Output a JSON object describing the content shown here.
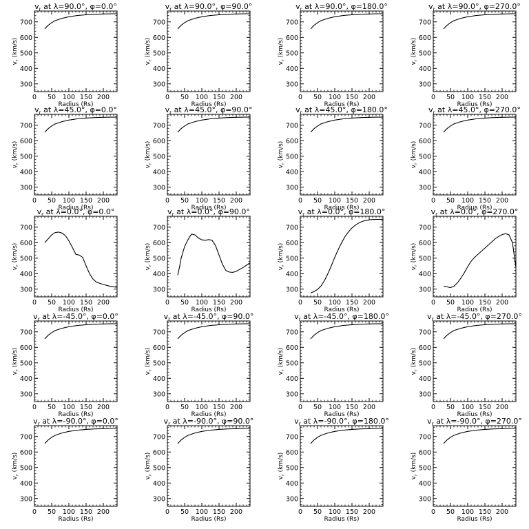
{
  "chart_data": [
    {
      "type": "line",
      "title": "v_r at λ=90.0°, φ=0.0°",
      "title_parts": {
        "var": "v",
        "sub": "r",
        "mid": " at λ=90.0°, φ=0.0°"
      },
      "xlabel": "Radius (Rs)",
      "ylabel": "v_r (km/s)",
      "xlim": [
        0,
        240
      ],
      "ylim": [
        250,
        770
      ],
      "xticks": [
        0,
        50,
        100,
        150,
        200
      ],
      "yticks": [
        300,
        400,
        500,
        600,
        700
      ],
      "x": [
        30,
        40,
        50,
        60,
        80,
        100,
        125,
        150,
        175,
        200,
        225,
        240
      ],
      "y": [
        655,
        678,
        695,
        708,
        723,
        733,
        741,
        746,
        749,
        751,
        752,
        752
      ]
    },
    {
      "type": "line",
      "title": "v_r at λ=90.0°, φ=90.0°",
      "title_parts": {
        "var": "v",
        "sub": "r",
        "mid": " at λ=90.0°, φ=90.0°"
      },
      "xlabel": "Radius (Rs)",
      "ylabel": "v_r (km/s)",
      "xlim": [
        0,
        240
      ],
      "ylim": [
        250,
        770
      ],
      "xticks": [
        0,
        50,
        100,
        150,
        200
      ],
      "yticks": [
        300,
        400,
        500,
        600,
        700
      ],
      "x": [
        30,
        40,
        50,
        60,
        80,
        100,
        125,
        150,
        175,
        200,
        225,
        240
      ],
      "y": [
        655,
        678,
        695,
        708,
        723,
        733,
        741,
        746,
        749,
        751,
        752,
        752
      ]
    },
    {
      "type": "line",
      "title": "v_r at λ=90.0°, φ=180.0°",
      "title_parts": {
        "var": "v",
        "sub": "r",
        "mid": " at λ=90.0°, φ=180.0°"
      },
      "xlabel": "Radius (Rs)",
      "ylabel": "v_r (km/s)",
      "xlim": [
        0,
        240
      ],
      "ylim": [
        250,
        770
      ],
      "xticks": [
        0,
        50,
        100,
        150,
        200
      ],
      "yticks": [
        300,
        400,
        500,
        600,
        700
      ],
      "x": [
        30,
        40,
        50,
        60,
        80,
        100,
        125,
        150,
        175,
        200,
        225,
        240
      ],
      "y": [
        655,
        678,
        695,
        708,
        723,
        733,
        741,
        746,
        749,
        751,
        752,
        752
      ]
    },
    {
      "type": "line",
      "title": "v_r at λ=90.0°, φ=270.0°",
      "title_parts": {
        "var": "v",
        "sub": "r",
        "mid": " at λ=90.0°, φ=270.0°"
      },
      "xlabel": "Radius (Rs)",
      "ylabel": "v_r (km/s)",
      "xlim": [
        0,
        240
      ],
      "ylim": [
        250,
        770
      ],
      "xticks": [
        0,
        50,
        100,
        150,
        200
      ],
      "yticks": [
        300,
        400,
        500,
        600,
        700
      ],
      "x": [
        30,
        40,
        50,
        60,
        80,
        100,
        125,
        150,
        175,
        200,
        225,
        240
      ],
      "y": [
        655,
        678,
        695,
        708,
        723,
        733,
        741,
        746,
        749,
        751,
        752,
        752
      ]
    },
    {
      "type": "line",
      "title": "v_r at λ=45.0°, φ=0.0°",
      "title_parts": {
        "var": "v",
        "sub": "r",
        "mid": " at λ=45.0°, φ=0.0°"
      },
      "xlabel": "Radius (Rs)",
      "ylabel": "v_r (km/s)",
      "xlim": [
        0,
        240
      ],
      "ylim": [
        250,
        770
      ],
      "xticks": [
        0,
        50,
        100,
        150,
        200
      ],
      "yticks": [
        300,
        400,
        500,
        600,
        700
      ],
      "x": [
        30,
        40,
        50,
        60,
        80,
        100,
        125,
        150,
        175,
        200,
        225,
        240
      ],
      "y": [
        655,
        678,
        695,
        708,
        723,
        733,
        741,
        746,
        749,
        751,
        752,
        752
      ]
    },
    {
      "type": "line",
      "title": "v_r at λ=45.0°, φ=90.0°",
      "title_parts": {
        "var": "v",
        "sub": "r",
        "mid": " at λ=45.0°, φ=90.0°"
      },
      "xlabel": "Radius (Rs)",
      "ylabel": "v_r (km/s)",
      "xlim": [
        0,
        240
      ],
      "ylim": [
        250,
        770
      ],
      "xticks": [
        0,
        50,
        100,
        150,
        200
      ],
      "yticks": [
        300,
        400,
        500,
        600,
        700
      ],
      "x": [
        30,
        40,
        50,
        60,
        80,
        100,
        125,
        150,
        175,
        200,
        225,
        240
      ],
      "y": [
        655,
        678,
        695,
        708,
        723,
        733,
        741,
        746,
        749,
        751,
        752,
        752
      ]
    },
    {
      "type": "line",
      "title": "v_r at λ=45.0°, φ=180.0°",
      "title_parts": {
        "var": "v",
        "sub": "r",
        "mid": " at λ=45.0°, φ=180.0°"
      },
      "xlabel": "Radius (Rs)",
      "ylabel": "v_r (km/s)",
      "xlim": [
        0,
        240
      ],
      "ylim": [
        250,
        770
      ],
      "xticks": [
        0,
        50,
        100,
        150,
        200
      ],
      "yticks": [
        300,
        400,
        500,
        600,
        700
      ],
      "x": [
        30,
        40,
        50,
        60,
        80,
        100,
        125,
        150,
        175,
        200,
        225,
        240
      ],
      "y": [
        655,
        678,
        695,
        708,
        723,
        733,
        741,
        746,
        749,
        751,
        752,
        752
      ]
    },
    {
      "type": "line",
      "title": "v_r at λ=45.0°, φ=270.0°",
      "title_parts": {
        "var": "v",
        "sub": "r",
        "mid": " at λ=45.0°, φ=270.0°"
      },
      "xlabel": "Radius (Rs)",
      "ylabel": "v_r (km/s)",
      "xlim": [
        0,
        240
      ],
      "ylim": [
        250,
        770
      ],
      "xticks": [
        0,
        50,
        100,
        150,
        200
      ],
      "yticks": [
        300,
        400,
        500,
        600,
        700
      ],
      "x": [
        30,
        40,
        50,
        60,
        80,
        100,
        125,
        150,
        175,
        200,
        225,
        240
      ],
      "y": [
        655,
        678,
        695,
        708,
        723,
        733,
        741,
        746,
        749,
        751,
        752,
        752
      ]
    },
    {
      "type": "line",
      "title": "v_r at λ=0.0°, φ=0.0°",
      "title_parts": {
        "var": "v",
        "sub": "r",
        "mid": " at λ=0.0°, φ=0.0°"
      },
      "xlabel": "Radius (Rs)",
      "ylabel": "v_r (km/s)",
      "xlim": [
        0,
        240
      ],
      "ylim": [
        250,
        770
      ],
      "xticks": [
        0,
        50,
        100,
        150,
        200
      ],
      "yticks": [
        300,
        400,
        500,
        600,
        700
      ],
      "x": [
        30,
        40,
        50,
        60,
        70,
        80,
        90,
        100,
        110,
        120,
        130,
        140,
        150,
        160,
        170,
        180,
        200,
        220,
        240
      ],
      "y": [
        600,
        625,
        650,
        665,
        668,
        662,
        645,
        612,
        570,
        525,
        520,
        505,
        450,
        400,
        365,
        345,
        330,
        318,
        312
      ]
    },
    {
      "type": "line",
      "title": "v_r at λ=0.0°, φ=90.0°",
      "title_parts": {
        "var": "v",
        "sub": "r",
        "mid": " at λ=0.0°, φ=90.0°"
      },
      "xlabel": "Radius (Rs)",
      "ylabel": "v_r (km/s)",
      "xlim": [
        0,
        240
      ],
      "ylim": [
        250,
        770
      ],
      "xticks": [
        0,
        50,
        100,
        150,
        200
      ],
      "yticks": [
        300,
        400,
        500,
        600,
        700
      ],
      "x": [
        30,
        35,
        40,
        50,
        60,
        70,
        80,
        90,
        100,
        110,
        120,
        130,
        140,
        150,
        160,
        170,
        180,
        190,
        200,
        220,
        240
      ],
      "y": [
        390,
        440,
        500,
        575,
        620,
        655,
        650,
        630,
        618,
        615,
        620,
        615,
        580,
        520,
        460,
        420,
        410,
        408,
        415,
        440,
        470
      ]
    },
    {
      "type": "line",
      "title": "v_r at λ=0.0°, φ=180.0°",
      "title_parts": {
        "var": "v",
        "sub": "r",
        "mid": " at λ=0.0°, φ=180.0°"
      },
      "xlabel": "Radius (Rs)",
      "ylabel": "v_r (km/s)",
      "xlim": [
        0,
        240
      ],
      "ylim": [
        250,
        770
      ],
      "xticks": [
        0,
        50,
        100,
        150,
        200
      ],
      "yticks": [
        300,
        400,
        500,
        600,
        700
      ],
      "x": [
        30,
        40,
        50,
        60,
        70,
        80,
        90,
        100,
        110,
        120,
        130,
        140,
        150,
        160,
        170,
        180,
        190,
        200,
        210,
        220,
        240
      ],
      "y": [
        275,
        285,
        298,
        320,
        355,
        400,
        450,
        505,
        555,
        600,
        640,
        670,
        695,
        713,
        727,
        737,
        743,
        747,
        749,
        750,
        750
      ]
    },
    {
      "type": "line",
      "title": "v_r at λ=0.0°, φ=270.0°",
      "title_parts": {
        "var": "v",
        "sub": "r",
        "mid": " at λ=0.0°, φ=270.0°"
      },
      "xlabel": "Radius (Rs)",
      "ylabel": "v_r (km/s)",
      "xlim": [
        0,
        240
      ],
      "ylim": [
        250,
        770
      ],
      "xticks": [
        0,
        50,
        100,
        150,
        200
      ],
      "yticks": [
        300,
        400,
        500,
        600,
        700
      ],
      "x": [
        30,
        40,
        50,
        60,
        70,
        80,
        90,
        100,
        110,
        120,
        130,
        140,
        150,
        160,
        170,
        180,
        190,
        200,
        210,
        220,
        230,
        240
      ],
      "y": [
        320,
        315,
        310,
        318,
        340,
        370,
        405,
        445,
        480,
        505,
        525,
        545,
        565,
        585,
        605,
        625,
        640,
        652,
        658,
        650,
        600,
        440
      ]
    },
    {
      "type": "line",
      "title": "v_r at λ=-45.0°, φ=0.0°",
      "title_parts": {
        "var": "v",
        "sub": "r",
        "mid": " at λ=-45.0°, φ=0.0°"
      },
      "xlabel": "Radius (Rs)",
      "ylabel": "v_r (km/s)",
      "xlim": [
        0,
        240
      ],
      "ylim": [
        250,
        770
      ],
      "xticks": [
        0,
        50,
        100,
        150,
        200
      ],
      "yticks": [
        300,
        400,
        500,
        600,
        700
      ],
      "x": [
        30,
        40,
        50,
        60,
        80,
        100,
        125,
        150,
        175,
        200,
        225,
        240
      ],
      "y": [
        655,
        678,
        695,
        708,
        723,
        733,
        741,
        746,
        749,
        751,
        752,
        752
      ]
    },
    {
      "type": "line",
      "title": "v_r at λ=-45.0°, φ=90.0°",
      "title_parts": {
        "var": "v",
        "sub": "r",
        "mid": " at λ=-45.0°, φ=90.0°"
      },
      "xlabel": "Radius (Rs)",
      "ylabel": "v_r (km/s)",
      "xlim": [
        0,
        240
      ],
      "ylim": [
        250,
        770
      ],
      "xticks": [
        0,
        50,
        100,
        150,
        200
      ],
      "yticks": [
        300,
        400,
        500,
        600,
        700
      ],
      "x": [
        30,
        40,
        50,
        60,
        80,
        100,
        125,
        150,
        175,
        200,
        225,
        240
      ],
      "y": [
        655,
        678,
        695,
        708,
        723,
        733,
        741,
        746,
        749,
        751,
        752,
        752
      ]
    },
    {
      "type": "line",
      "title": "v_r at λ=-45.0°, φ=180.0°",
      "title_parts": {
        "var": "v",
        "sub": "r",
        "mid": " at λ=-45.0°, φ=180.0°"
      },
      "xlabel": "Radius (Rs)",
      "ylabel": "v_r (km/s)",
      "xlim": [
        0,
        240
      ],
      "ylim": [
        250,
        770
      ],
      "xticks": [
        0,
        50,
        100,
        150,
        200
      ],
      "yticks": [
        300,
        400,
        500,
        600,
        700
      ],
      "x": [
        30,
        40,
        50,
        60,
        80,
        100,
        125,
        150,
        175,
        200,
        225,
        240
      ],
      "y": [
        655,
        678,
        695,
        708,
        723,
        733,
        741,
        746,
        749,
        751,
        752,
        752
      ]
    },
    {
      "type": "line",
      "title": "v_r at λ=-45.0°, φ=270.0°",
      "title_parts": {
        "var": "v",
        "sub": "r",
        "mid": " at λ=-45.0°, φ=270.0°"
      },
      "xlabel": "Radius (Rs)",
      "ylabel": "v_r (km/s)",
      "xlim": [
        0,
        240
      ],
      "ylim": [
        250,
        770
      ],
      "xticks": [
        0,
        50,
        100,
        150,
        200
      ],
      "yticks": [
        300,
        400,
        500,
        600,
        700
      ],
      "x": [
        30,
        40,
        50,
        60,
        80,
        100,
        125,
        150,
        175,
        200,
        225,
        240
      ],
      "y": [
        655,
        678,
        695,
        708,
        723,
        733,
        741,
        746,
        749,
        751,
        752,
        752
      ]
    },
    {
      "type": "line",
      "title": "v_r at λ=-90.0°, φ=0.0°",
      "title_parts": {
        "var": "v",
        "sub": "r",
        "mid": " at λ=-90.0°, φ=0.0°"
      },
      "xlabel": "Radius (Rs)",
      "ylabel": "v_r (km/s)",
      "xlim": [
        0,
        240
      ],
      "ylim": [
        250,
        770
      ],
      "xticks": [
        0,
        50,
        100,
        150,
        200
      ],
      "yticks": [
        300,
        400,
        500,
        600,
        700
      ],
      "x": [
        30,
        40,
        50,
        60,
        80,
        100,
        125,
        150,
        175,
        200,
        225,
        240
      ],
      "y": [
        655,
        678,
        695,
        708,
        723,
        733,
        741,
        746,
        749,
        751,
        752,
        752
      ]
    },
    {
      "type": "line",
      "title": "v_r at λ=-90.0°, φ=90.0°",
      "title_parts": {
        "var": "v",
        "sub": "r",
        "mid": " at λ=-90.0°, φ=90.0°"
      },
      "xlabel": "Radius (Rs)",
      "ylabel": "v_r (km/s)",
      "xlim": [
        0,
        240
      ],
      "ylim": [
        250,
        770
      ],
      "xticks": [
        0,
        50,
        100,
        150,
        200
      ],
      "yticks": [
        300,
        400,
        500,
        600,
        700
      ],
      "x": [
        30,
        40,
        50,
        60,
        80,
        100,
        125,
        150,
        175,
        200,
        225,
        240
      ],
      "y": [
        655,
        678,
        695,
        708,
        723,
        733,
        741,
        746,
        749,
        751,
        752,
        752
      ]
    },
    {
      "type": "line",
      "title": "v_r at λ=-90.0°, φ=180.0°",
      "title_parts": {
        "var": "v",
        "sub": "r",
        "mid": " at λ=-90.0°, φ=180.0°"
      },
      "xlabel": "Radius (Rs)",
      "ylabel": "v_r (km/s)",
      "xlim": [
        0,
        240
      ],
      "ylim": [
        250,
        770
      ],
      "xticks": [
        0,
        50,
        100,
        150,
        200
      ],
      "yticks": [
        300,
        400,
        500,
        600,
        700
      ],
      "x": [
        30,
        40,
        50,
        60,
        80,
        100,
        125,
        150,
        175,
        200,
        225,
        240
      ],
      "y": [
        655,
        678,
        695,
        708,
        723,
        733,
        741,
        746,
        749,
        751,
        752,
        752
      ]
    },
    {
      "type": "line",
      "title": "v_r at λ=-90.0°, φ=270.0°",
      "title_parts": {
        "var": "v",
        "sub": "r",
        "mid": " at λ=-90.0°, φ=270.0°"
      },
      "xlabel": "Radius (Rs)",
      "ylabel": "v_r (km/s)",
      "xlim": [
        0,
        240
      ],
      "ylim": [
        250,
        770
      ],
      "xticks": [
        0,
        50,
        100,
        150,
        200
      ],
      "yticks": [
        300,
        400,
        500,
        600,
        700
      ],
      "x": [
        30,
        40,
        50,
        60,
        80,
        100,
        125,
        150,
        175,
        200,
        225,
        240
      ],
      "y": [
        655,
        678,
        695,
        708,
        723,
        733,
        741,
        746,
        749,
        751,
        752,
        752
      ]
    }
  ]
}
